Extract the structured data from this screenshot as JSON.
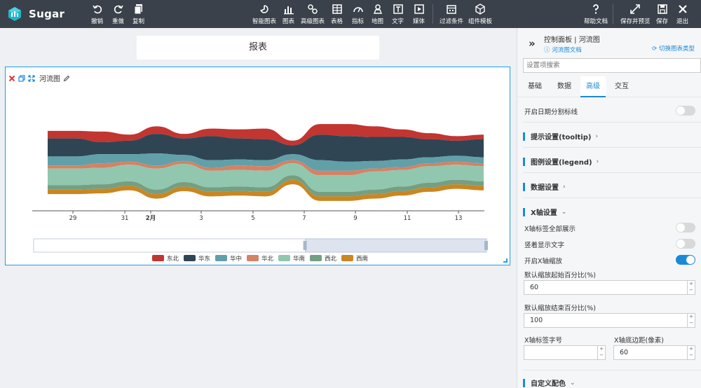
{
  "app": {
    "name": "Sugar"
  },
  "toolbar": {
    "undo": "撤销",
    "redo": "重做",
    "copy": "复制",
    "smart_chart": "智能图表",
    "chart": "图表",
    "advanced_chart": "高级图表",
    "table": "表格",
    "indicator": "指标",
    "map": "地图",
    "text": "文字",
    "media": "媒体",
    "filter": "过滤条件",
    "component_template": "组件模板",
    "help": "帮助文档",
    "save_preview": "保存并预览",
    "save": "保存",
    "exit": "退出"
  },
  "report": {
    "title": "报表"
  },
  "chart_widget": {
    "title": "河流图"
  },
  "panel": {
    "title": "控制面板 | 河流图",
    "doc_link": "河流图文档",
    "switch_type": "切换图表类型",
    "search_placeholder": "设置项搜索",
    "tabs": [
      "基础",
      "数据",
      "高级",
      "交互"
    ],
    "active_tab": "高级",
    "date_split_label": "开启日期分割标线",
    "sections": {
      "tooltip": "提示设置(tooltip)",
      "legend": "图例设置(legend)",
      "data": "数据设置",
      "xaxis": "X轴设置",
      "custom_color": "自定义配色"
    },
    "xaxis": {
      "show_all_labels": "X轴标签全部展示",
      "vertical_text": "竖着显示文字",
      "enable_zoom": "开启X轴缩放",
      "zoom_start_label": "默认缩放起始百分比(%)",
      "zoom_start_value": "60",
      "zoom_end_label": "默认缩放结束百分比(%)",
      "zoom_end_value": "100",
      "label_font_label": "X轴标签字号",
      "label_font_value": "",
      "bottom_margin_label": "X轴底边距(像素)",
      "bottom_margin_value": "60"
    }
  },
  "chart_data": {
    "type": "themeRiver",
    "x_tick_labels": [
      "29",
      "31",
      "2月",
      "3",
      "5",
      "7",
      "9",
      "11",
      "13"
    ],
    "legend": [
      {
        "name": "东北",
        "color": "#c23531"
      },
      {
        "name": "华东",
        "color": "#2f4554"
      },
      {
        "name": "华中",
        "color": "#61a0a8"
      },
      {
        "name": "华北",
        "color": "#d48265"
      },
      {
        "name": "华南",
        "color": "#91c7ae"
      },
      {
        "name": "西北",
        "color": "#749f83"
      },
      {
        "name": "西南",
        "color": "#ca8622"
      }
    ],
    "zoom": {
      "start": 60,
      "end": 100
    },
    "series": [
      {
        "name": "东北",
        "values": [
          5,
          5,
          7,
          4,
          5,
          3,
          5,
          6,
          7,
          3,
          7,
          8,
          7,
          5,
          4,
          3,
          3
        ]
      },
      {
        "name": "华东",
        "values": [
          12,
          12,
          8,
          9,
          13,
          11,
          16,
          14,
          14,
          6,
          17,
          17,
          16,
          15,
          12,
          10,
          12
        ]
      },
      {
        "name": "华中",
        "values": [
          6,
          6,
          6,
          5,
          8,
          4,
          5,
          4,
          4,
          4,
          7,
          6,
          5,
          5,
          4,
          4,
          4
        ]
      },
      {
        "name": "华北",
        "values": [
          2,
          2,
          3,
          2,
          2,
          2,
          2,
          3,
          3,
          2,
          3,
          3,
          2,
          2,
          2,
          2,
          2
        ]
      },
      {
        "name": "华南",
        "values": [
          11,
          11,
          11,
          11,
          14,
          12,
          11,
          11,
          11,
          8,
          11,
          11,
          12,
          11,
          11,
          10,
          10
        ]
      },
      {
        "name": "西北",
        "values": [
          3,
          3,
          3,
          3,
          3,
          3,
          3,
          3,
          3,
          3,
          3,
          3,
          3,
          3,
          3,
          3,
          3
        ]
      },
      {
        "name": "西南",
        "values": [
          3,
          3,
          3,
          3,
          3,
          3,
          3,
          3,
          3,
          3,
          3,
          3,
          3,
          3,
          3,
          3,
          3
        ]
      }
    ]
  }
}
